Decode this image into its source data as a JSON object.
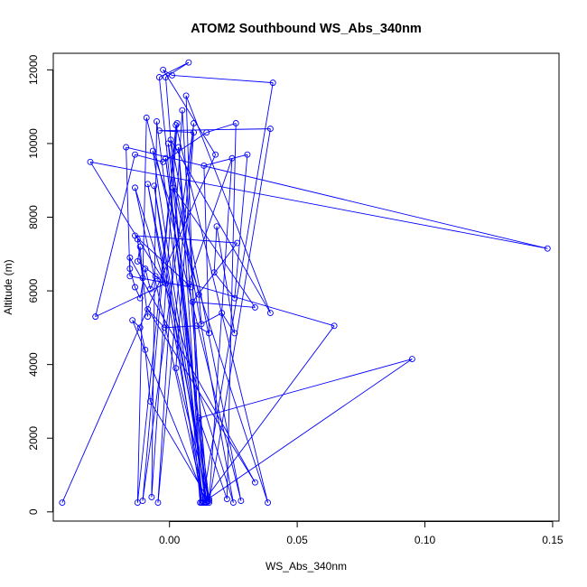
{
  "chart_data": {
    "type": "line",
    "title": "ATOM2 Southbound WS_Abs_340nm",
    "xlabel": "WS_Abs_340nm",
    "ylabel": "Altitude (m)",
    "xlim": [
      -0.0455,
      0.1525
    ],
    "ylim": [
      -250,
      12450
    ],
    "xticks": [
      {
        "value": 0.0,
        "label": "0.00"
      },
      {
        "value": 0.05,
        "label": "0.05"
      },
      {
        "value": 0.1,
        "label": "0.10"
      },
      {
        "value": 0.15,
        "label": "0.15"
      }
    ],
    "yticks": [
      {
        "value": 0,
        "label": "0"
      },
      {
        "value": 2000,
        "label": "2000"
      },
      {
        "value": 4000,
        "label": "4000"
      },
      {
        "value": 6000,
        "label": "6000"
      },
      {
        "value": 8000,
        "label": "8000"
      },
      {
        "value": 10000,
        "label": "10000"
      },
      {
        "value": 12000,
        "label": "12000"
      }
    ],
    "grid": false,
    "legend": "none",
    "colors": {
      "series": "#0000ff",
      "axis": "#000000",
      "background": "#ffffff"
    },
    "series": [
      {
        "marker": "open-circle",
        "points": [
          {
            "x": -0.042,
            "y": 250
          },
          {
            "x": 0.018,
            "y": 9700
          },
          {
            "x": -0.0025,
            "y": 12000
          },
          {
            "x": 0.001,
            "y": 11850
          },
          {
            "x": 0.0405,
            "y": 11650
          },
          {
            "x": 0.013,
            "y": 300
          },
          {
            "x": -0.004,
            "y": 11800
          },
          {
            "x": 0.0075,
            "y": 12200
          },
          {
            "x": -0.0015,
            "y": 11800
          },
          {
            "x": 0.012,
            "y": 250
          },
          {
            "x": 0.0065,
            "y": 11300
          },
          {
            "x": 0.0395,
            "y": 5400
          },
          {
            "x": 0.0005,
            "y": 10100
          },
          {
            "x": 0.028,
            "y": 300
          },
          {
            "x": -0.009,
            "y": 10700
          },
          {
            "x": -0.0125,
            "y": 250
          },
          {
            "x": 0.003,
            "y": 10550
          },
          {
            "x": -0.007,
            "y": 400
          },
          {
            "x": -0.005,
            "y": 10600
          },
          {
            "x": 0.014,
            "y": 250
          },
          {
            "x": 0.005,
            "y": 10900
          },
          {
            "x": -0.0045,
            "y": 250
          },
          {
            "x": 0.0095,
            "y": 10550
          },
          {
            "x": -0.0105,
            "y": 300
          },
          {
            "x": 0.0025,
            "y": 10500
          },
          {
            "x": 0.0385,
            "y": 250
          },
          {
            "x": -0.0065,
            "y": 9800
          },
          {
            "x": 0.0145,
            "y": 250
          },
          {
            "x": -0.0005,
            "y": 10000
          },
          {
            "x": 0.025,
            "y": 250
          },
          {
            "x": -0.0135,
            "y": 8800
          },
          {
            "x": 0.0135,
            "y": 250
          },
          {
            "x": -0.0085,
            "y": 8900
          },
          {
            "x": 0.0155,
            "y": 350
          },
          {
            "x": -0.0015,
            "y": 9600
          },
          {
            "x": 0.015,
            "y": 300
          },
          {
            "x": 0.0035,
            "y": 9900
          },
          {
            "x": 0.0125,
            "y": 250
          },
          {
            "x": -0.006,
            "y": 8850
          },
          {
            "x": 0.0145,
            "y": 250
          },
          {
            "x": -0.0145,
            "y": 5200
          },
          {
            "x": -0.0115,
            "y": 5000
          },
          {
            "x": -0.0095,
            "y": 4400
          },
          {
            "x": -0.0075,
            "y": 3000
          },
          {
            "x": 0.0155,
            "y": 300
          },
          {
            "x": 0.0025,
            "y": 3900
          },
          {
            "x": 0.0095,
            "y": 10300
          },
          {
            "x": -0.004,
            "y": 10350
          },
          {
            "x": 0.0395,
            "y": 10400
          },
          {
            "x": 0.0155,
            "y": 250
          },
          {
            "x": 0.0245,
            "y": 9600
          },
          {
            "x": 0.0075,
            "y": 6200
          },
          {
            "x": 0.0645,
            "y": 5050
          },
          {
            "x": 0.013,
            "y": 250
          },
          {
            "x": 0.095,
            "y": 4150
          },
          {
            "x": 0.0115,
            "y": 2550
          },
          {
            "x": 0.0225,
            "y": 350
          },
          {
            "x": 0.026,
            "y": 10550
          },
          {
            "x": 0.0145,
            "y": 10300
          },
          {
            "x": -0.0025,
            "y": 9500
          },
          {
            "x": -0.0135,
            "y": 9700
          },
          {
            "x": -0.029,
            "y": 5300
          },
          {
            "x": -0.0015,
            "y": 6200
          },
          {
            "x": -0.031,
            "y": 9500
          },
          {
            "x": 0.148,
            "y": 7150
          },
          {
            "x": -0.017,
            "y": 9900
          },
          {
            "x": -0.0155,
            "y": 6400
          },
          {
            "x": 0.0085,
            "y": 6100
          },
          {
            "x": -0.0135,
            "y": 7500
          },
          {
            "x": 0.0265,
            "y": 7300
          },
          {
            "x": 0.009,
            "y": 5700
          },
          {
            "x": 0.0335,
            "y": 5550
          },
          {
            "x": 0.0015,
            "y": 8800
          },
          {
            "x": 0.0115,
            "y": 5900
          },
          {
            "x": 0.0125,
            "y": 5100
          },
          {
            "x": 0.0205,
            "y": 5400
          },
          {
            "x": 0.0255,
            "y": 4850
          },
          {
            "x": 0.0185,
            "y": 7750
          },
          {
            "x": 0.0175,
            "y": 6500
          },
          {
            "x": 0.0255,
            "y": 5800
          },
          {
            "x": 0.0305,
            "y": 9700
          },
          {
            "x": 0.0135,
            "y": 9400
          },
          {
            "x": 0.0155,
            "y": 4850
          },
          {
            "x": 0.0105,
            "y": 5050
          },
          {
            "x": -0.002,
            "y": 5000
          },
          {
            "x": -0.0085,
            "y": 5500
          },
          {
            "x": 0.0335,
            "y": 800
          },
          {
            "x": -0.0155,
            "y": 6900
          },
          {
            "x": -0.0155,
            "y": 6600
          },
          {
            "x": -0.0135,
            "y": 6100
          },
          {
            "x": -0.0115,
            "y": 5800
          },
          {
            "x": -0.0095,
            "y": 6600
          },
          {
            "x": -0.0075,
            "y": 6050
          },
          {
            "x": -0.0055,
            "y": 6400
          },
          {
            "x": -0.0035,
            "y": 6300
          },
          {
            "x": -0.0125,
            "y": 6800
          },
          {
            "x": -0.0115,
            "y": 7200
          },
          {
            "x": -0.0105,
            "y": 6350
          },
          {
            "x": -0.0125,
            "y": 7400
          },
          {
            "x": -0.0085,
            "y": 5300
          }
        ]
      }
    ]
  }
}
